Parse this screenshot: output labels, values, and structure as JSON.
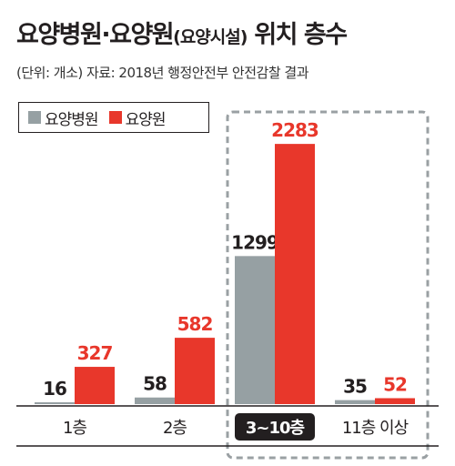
{
  "title": "요양병원·요양원",
  "title_sub": "(요양시설)",
  "title_tail": "위치 층수",
  "subtitle": "(단위: 개소) 자료: 2018년 행정안전부 안전감찰 결과",
  "colors": {
    "hospital": "#96a0a3",
    "facility": "#e8372b",
    "highlight_label_bg": "#231f20",
    "dashed_box": "#9aa0a3"
  },
  "chart_data": {
    "type": "bar",
    "categories": [
      "1층",
      "2층",
      "3~10층",
      "11층 이상"
    ],
    "series": [
      {
        "name": "요양병원",
        "values": [
          16,
          58,
          1299,
          35
        ]
      },
      {
        "name": "요양원",
        "values": [
          327,
          582,
          2283,
          52
        ]
      }
    ],
    "ylim": [
      0,
      2300
    ],
    "highlighted_category": "3~10층",
    "legend_position": "top-left",
    "grid": false
  }
}
